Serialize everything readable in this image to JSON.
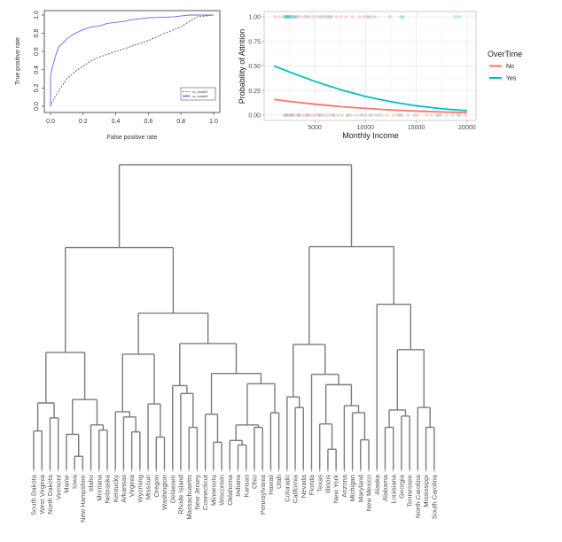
{
  "chart_data": [
    {
      "type": "line",
      "title": "",
      "xlabel": "False positive rate",
      "ylabel": "True positive rate",
      "xlim": [
        0,
        1
      ],
      "ylim": [
        0,
        1
      ],
      "x_ticks": [
        "0.0",
        "0.2",
        "0.4",
        "0.6",
        "0.8",
        "1.0"
      ],
      "y_ticks": [
        "0.0",
        "0.2",
        "0.4",
        "0.6",
        "0.8",
        "1.0"
      ],
      "grid": false,
      "legend_position": "bottom-right",
      "series": [
        {
          "name": "cv_model1",
          "color": "#555555",
          "style": "dashed",
          "x": [
            0,
            0.01,
            0.05,
            0.1,
            0.15,
            0.2,
            0.25,
            0.3,
            0.4,
            0.5,
            0.6,
            0.7,
            0.8,
            0.85,
            0.9,
            1.0
          ],
          "y": [
            0,
            0.05,
            0.17,
            0.3,
            0.38,
            0.44,
            0.5,
            0.54,
            0.6,
            0.66,
            0.72,
            0.8,
            0.87,
            0.93,
            0.98,
            1.0
          ]
        },
        {
          "name": "cv_model3",
          "color": "#5b6cf5",
          "style": "solid",
          "x": [
            0,
            0,
            0.01,
            0.03,
            0.05,
            0.08,
            0.1,
            0.15,
            0.2,
            0.25,
            0.3,
            0.35,
            0.45,
            0.5,
            0.6,
            0.75,
            0.85,
            1.0
          ],
          "y": [
            0,
            0.33,
            0.42,
            0.55,
            0.65,
            0.7,
            0.74,
            0.8,
            0.84,
            0.87,
            0.88,
            0.91,
            0.93,
            0.95,
            0.97,
            0.98,
            1.0,
            1.0
          ]
        }
      ]
    },
    {
      "type": "line",
      "title": "",
      "xlabel": "Monthly Income",
      "ylabel": "Probability of Attrition",
      "xlim": [
        0,
        20000
      ],
      "ylim": [
        0,
        1
      ],
      "x_ticks": [
        "5000",
        "10000",
        "15000",
        "20000"
      ],
      "y_ticks": [
        "0.00",
        "0.25",
        "0.50",
        "0.75",
        "1.00"
      ],
      "grid": true,
      "legend_title": "OverTime",
      "legend_position": "right",
      "series": [
        {
          "name": "No",
          "color": "#F8766D",
          "x": [
            1000,
            2500,
            5000,
            7500,
            10000,
            12500,
            15000,
            17500,
            20000
          ],
          "y": [
            0.16,
            0.14,
            0.111,
            0.087,
            0.069,
            0.053,
            0.041,
            0.032,
            0.025
          ],
          "points_at_1": [
            1100,
            1500,
            2100,
            2400,
            2700,
            3000,
            3300,
            3600,
            4000,
            4500,
            4900,
            5300,
            5800,
            6300,
            6700,
            7200,
            7600,
            8100,
            8700,
            9400,
            9800,
            10200,
            10600
          ],
          "points_at_0": [
            2000,
            2200,
            2400,
            2600,
            2800,
            3000,
            3300,
            3500,
            3800,
            4100,
            4400,
            4700,
            5000,
            5300,
            5600,
            5900,
            6200,
            6500,
            6800,
            7300,
            7700,
            8200,
            8600,
            9100,
            9500,
            10000,
            10400,
            11000,
            11600,
            12100,
            12800,
            13200,
            13600,
            14200,
            15100,
            16000,
            16500,
            17000,
            17400,
            18000,
            18600,
            19300,
            19800
          ]
        },
        {
          "name": "Yes",
          "color": "#00BFC4",
          "x": [
            1000,
            2500,
            5000,
            7500,
            10000,
            12500,
            15000,
            17500,
            20000
          ],
          "y": [
            0.5,
            0.44,
            0.344,
            0.26,
            0.19,
            0.136,
            0.095,
            0.065,
            0.045
          ],
          "points_at_1": [
            1900,
            2100,
            2200,
            2300,
            2400,
            2500,
            2600,
            2800,
            3000,
            3200,
            4200,
            5600,
            6100,
            6500,
            10300,
            10900,
            12400,
            13500,
            13700,
            18900,
            19300
          ],
          "points_at_0": [
            2200,
            2700,
            3400,
            4300,
            5500,
            6900,
            8300,
            9700,
            10600,
            11300,
            13400,
            14800,
            17200,
            19100
          ]
        }
      ]
    },
    {
      "type": "dendrogram",
      "title": "",
      "leaves": [
        "South Dakota",
        "West Virginia",
        "North Dakota",
        "Vermont",
        "Maine",
        "Iowa",
        "New Hampshire",
        "Idaho",
        "Montana",
        "Nebraska",
        "Kentucky",
        "Arkansas",
        "Virginia",
        "Wyoming",
        "Missouri",
        "Oregon",
        "Washington",
        "Delaware",
        "Rhode Island",
        "Massachusetts",
        "New Jersey",
        "Connecticut",
        "Minnesota",
        "Wisconsin",
        "Oklahoma",
        "Indiana",
        "Kansas",
        "Ohio",
        "Pennsylvania",
        "Hawaii",
        "Utah",
        "Colorado",
        "California",
        "Nevada",
        "Florida",
        "Texas",
        "Illinois",
        "New York",
        "Arizona",
        "Michigan",
        "Maryland",
        "New Mexico",
        "Alaska",
        "Alabama",
        "Louisiana",
        "Georgia",
        "Tennessee",
        "North Carolina",
        "Mississippi",
        "South Carolina"
      ],
      "tree": {
        "h": 100,
        "c": [
          {
            "h": 72.8,
            "c": [
              {
                "h": 38.4,
                "c": [
                  {
                    "h": 21.8,
                    "c": [
                      {
                        "h": 12.6,
                        "c": [
                          "South Dakota",
                          "West Virginia"
                        ]
                      },
                      {
                        "h": 16.9,
                        "c": [
                          "North Dakota",
                          "Vermont"
                        ]
                      }
                    ]
                  },
                  {
                    "h": 22.9,
                    "c": [
                      {
                        "h": 11.5,
                        "c": [
                          "Maine",
                          {
                            "h": 4.3,
                            "c": [
                              "Iowa",
                              "New Hampshire"
                            ]
                          }
                        ]
                      },
                      {
                        "h": 14.6,
                        "c": [
                          "Idaho",
                          {
                            "h": 12.9,
                            "c": [
                              "Montana",
                              "Nebraska"
                            ]
                          }
                        ]
                      }
                    ]
                  }
                ]
              },
              {
                "h": 51.3,
                "c": [
                  {
                    "h": 37.8,
                    "c": [
                      {
                        "h": 18.9,
                        "c": [
                          "Kentucky",
                          {
                            "h": 17.2,
                            "c": [
                              "Arkansas",
                              {
                                "h": 12.3,
                                "c": [
                                  "Virginia",
                                  "Wyoming"
                                ]
                              }
                            ]
                          }
                        ]
                      },
                      {
                        "h": 21.5,
                        "c": [
                          "Missouri",
                          {
                            "h": 10.6,
                            "c": [
                              "Oregon",
                              "Washington"
                            ]
                          }
                        ]
                      }
                    ]
                  },
                  {
                    "h": 41.3,
                    "c": [
                      {
                        "h": 27.5,
                        "c": [
                          "Delaware",
                          {
                            "h": 24.9,
                            "c": [
                              "Rhode Island",
                              {
                                "h": 13.8,
                                "c": [
                                  "Massachusetts",
                                  "New Jersey"
                                ]
                              }
                            ]
                          }
                        ]
                      },
                      {
                        "h": 31.5,
                        "c": [
                          {
                            "h": 18.1,
                            "c": [
                              "Connecticut",
                              {
                                "h": 8.9,
                                "c": [
                                  "Minnesota",
                                  "Wisconsin"
                                ]
                              }
                            ]
                          },
                          {
                            "h": 28.1,
                            "c": [
                              {
                                "h": 14.6,
                                "c": [
                                  {
                                    "h": 9.5,
                                    "c": [
                                      "Oklahoma",
                                      {
                                        "h": 8.0,
                                        "c": [
                                          "Indiana",
                                          "Kansas"
                                        ]
                                      }
                                    ]
                                  },
                                  {
                                    "h": 13.8,
                                    "c": [
                                      "Ohio",
                                      "Pennsylvania"
                                    ]
                                  }
                                ]
                              },
                              {
                                "h": 18.6,
                                "c": [
                                  "Hawaii",
                                  "Utah"
                                ]
                              }
                            ]
                          }
                        ]
                      }
                    ]
                  }
                ]
              }
            ]
          },
          {
            "h": 73.1,
            "c": [
              {
                "h": 41.0,
                "c": [
                  {
                    "h": 23.8,
                    "c": [
                      "Colorado",
                      {
                        "h": 20.3,
                        "c": [
                          "California",
                          "Nevada"
                        ]
                      }
                    ]
                  },
                  {
                    "h": 31.2,
                    "c": [
                      "Florida",
                      {
                        "h": 27.8,
                        "c": [
                          {
                            "h": 14.9,
                            "c": [
                              "Texas",
                              {
                                "h": 6.6,
                                "c": [
                                  "Illinois",
                                  "New York"
                                ]
                              }
                            ]
                          },
                          {
                            "h": 20.9,
                            "c": [
                              "Arizona",
                              {
                                "h": 18.6,
                                "c": [
                                  "Michigan",
                                  {
                                    "h": 9.7,
                                    "c": [
                                      "Maryland",
                                      "New Mexico"
                                    ]
                                  }
                                ]
                              }
                            ]
                          }
                        ]
                      }
                    ]
                  }
                ]
              },
              {
                "h": 54.2,
                "c": [
                  "Alaska",
                  {
                    "h": 39.3,
                    "c": [
                      {
                        "h": 19.5,
                        "c": [
                          {
                            "h": 13.8,
                            "c": [
                              "Alabama",
                              "Louisiana"
                            ]
                          },
                          {
                            "h": 17.5,
                            "c": [
                              "Georgia",
                              "Tennessee"
                            ]
                          }
                        ]
                      },
                      {
                        "h": 20.3,
                        "c": [
                          "North Carolina",
                          {
                            "h": 13.8,
                            "c": [
                              "Mississippi",
                              "South Carolina"
                            ]
                          }
                        ]
                      }
                    ]
                  }
                ]
              }
            ]
          }
        ]
      }
    }
  ]
}
